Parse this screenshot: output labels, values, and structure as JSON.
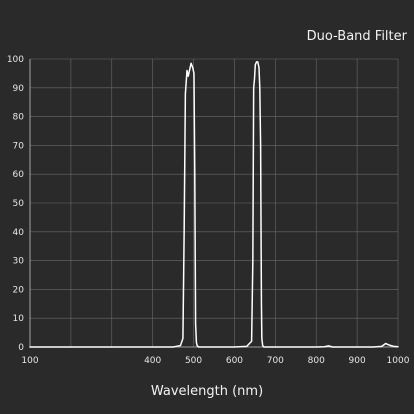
{
  "chart_data": {
    "type": "line",
    "title": "Duo-Band Filter",
    "xlabel": "Wavelength (nm)",
    "ylabel": "",
    "xlim": [
      100,
      1000
    ],
    "ylim": [
      0,
      100
    ],
    "x_ticks": [
      100,
      200,
      300,
      400,
      500,
      600,
      700,
      800,
      900,
      1000
    ],
    "x_tick_labels": [
      "100",
      "400",
      "500",
      "600",
      "700",
      "800",
      "900",
      "1000"
    ],
    "x_tick_label_values": [
      100,
      400,
      500,
      600,
      700,
      800,
      900,
      1000
    ],
    "y_ticks": [
      0,
      10,
      20,
      30,
      40,
      50,
      60,
      70,
      80,
      90,
      100
    ],
    "y_tick_labels": [
      "0",
      "10",
      "20",
      "30",
      "40",
      "50",
      "60",
      "70",
      "80",
      "90",
      "100"
    ],
    "grid": true,
    "colors": {
      "background": "#2a2a2a",
      "grid": "#6a6a6a",
      "axis": "#bdbdbd",
      "line": "#ffffff"
    },
    "series": [
      {
        "x": [
          100,
          300,
          400,
          450,
          468,
          474,
          477,
          480,
          484,
          487,
          490,
          494,
          498,
          501,
          503,
          505,
          507,
          509,
          513,
          530,
          600,
          630,
          642,
          645,
          647,
          649,
          651,
          654,
          657,
          660,
          662,
          664,
          666,
          667,
          669,
          672,
          690,
          750,
          800,
          820,
          830,
          840,
          880,
          940,
          960,
          970,
          980,
          990,
          1000
        ],
        "y": [
          0,
          0,
          0,
          0,
          0.5,
          3,
          40,
          88,
          96,
          94,
          96,
          98.5,
          97,
          95,
          60,
          8,
          1.5,
          0.4,
          0,
          0,
          0,
          0.2,
          2,
          30,
          90,
          93,
          98,
          99,
          99,
          97,
          90,
          70,
          15,
          3,
          0.5,
          0,
          0,
          0,
          0,
          0.1,
          0.4,
          0,
          0,
          0,
          0.2,
          1.2,
          0.6,
          0.2,
          0.1
        ]
      }
    ]
  }
}
